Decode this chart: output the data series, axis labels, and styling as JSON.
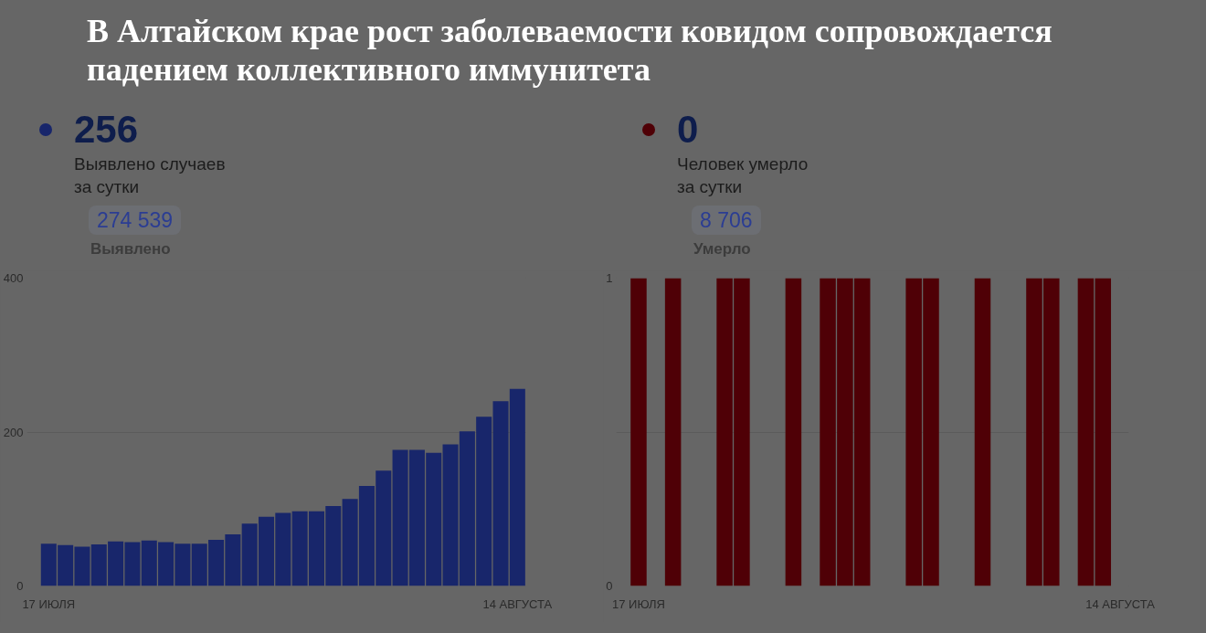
{
  "chart_data": [
    {
      "type": "bar",
      "title": "В Алтайском крае рост заболеваемости ковидом сопровождается падением коллективного иммунитета",
      "annotations": [
        "256",
        "Выявлено случаев\nза сутки",
        "274 539",
        "Выявлено"
      ],
      "categories": [
        "17 ИЮЛЯ",
        null,
        null,
        null,
        null,
        null,
        null,
        null,
        null,
        null,
        null,
        null,
        null,
        null,
        null,
        null,
        null,
        null,
        null,
        null,
        null,
        null,
        null,
        null,
        null,
        null,
        null,
        null,
        "14 АВГУСТА"
      ],
      "values": [
        55,
        53,
        51,
        54,
        58,
        57,
        59,
        57,
        55,
        55,
        60,
        67,
        81,
        90,
        95,
        97,
        97,
        104,
        113,
        130,
        150,
        177,
        177,
        173,
        184,
        201,
        220,
        240,
        256
      ],
      "color": "#18266b",
      "ylim": [
        0,
        400
      ],
      "yticks": [
        0,
        200,
        400
      ],
      "grid": "y"
    },
    {
      "type": "bar",
      "annotations": [
        "0",
        "Человек умерло\nза сутки",
        "8 706",
        "Умерло"
      ],
      "categories": [
        "17 ИЮЛЯ",
        null,
        null,
        null,
        null,
        null,
        null,
        null,
        null,
        null,
        null,
        null,
        null,
        null,
        null,
        null,
        null,
        null,
        null,
        null,
        null,
        null,
        null,
        null,
        null,
        null,
        null,
        null,
        "14 АВГУСТА"
      ],
      "values": [
        1,
        0,
        1,
        0,
        0,
        1,
        1,
        0,
        0,
        1,
        0,
        1,
        1,
        1,
        0,
        0,
        1,
        1,
        0,
        0,
        1,
        0,
        0,
        1,
        1,
        0,
        1,
        1,
        0
      ],
      "color": "#4f0006",
      "ylim": [
        0,
        1
      ],
      "yticks": [
        0,
        {
          "value": 0.5,
          "label": null
        },
        1
      ],
      "grid": "y"
    }
  ]
}
